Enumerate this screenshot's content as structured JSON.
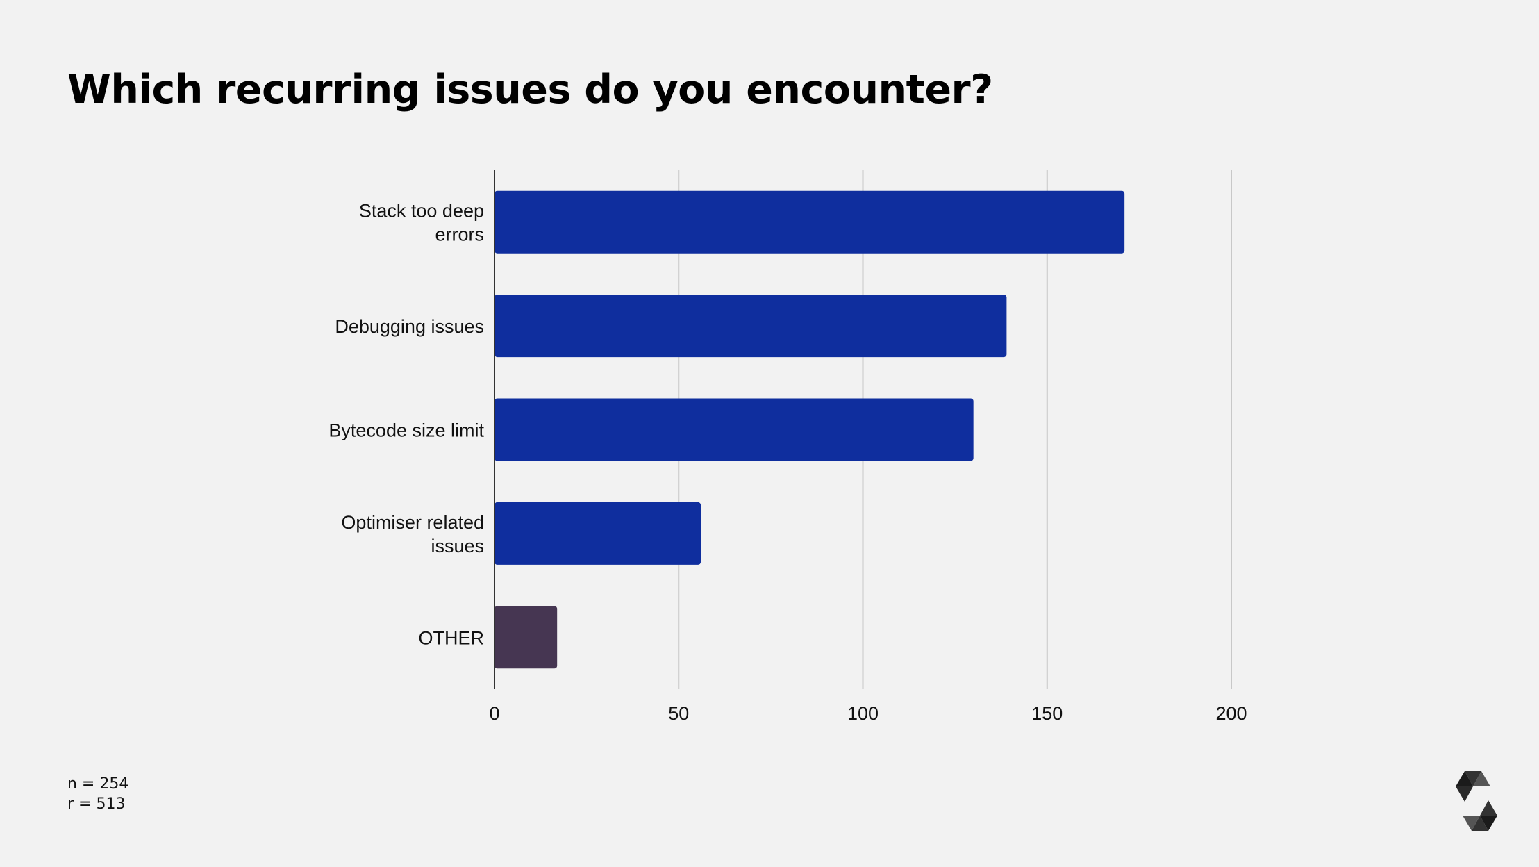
{
  "chart_data": {
    "type": "bar",
    "orientation": "horizontal",
    "title": "Which recurring issues do you encounter?",
    "categories": [
      [
        "Stack too deep",
        "errors"
      ],
      [
        "Debugging issues"
      ],
      [
        "Bytecode size limit"
      ],
      [
        "Optimiser related",
        "issues"
      ],
      [
        "OTHER"
      ]
    ],
    "values": [
      171,
      139,
      130,
      56,
      17
    ],
    "colors": [
      "#0f2e9e",
      "#0f2e9e",
      "#0f2e9e",
      "#0f2e9e",
      "#463652"
    ],
    "xlim": [
      0,
      200
    ],
    "xticks": [
      "0",
      "50",
      "100",
      "150",
      "200"
    ],
    "xtick_values": [
      0,
      50,
      100,
      150,
      200
    ],
    "grid": true,
    "xlabel": "",
    "ylabel": ""
  },
  "notes": {
    "n": "n = 254",
    "r": "r = 513"
  },
  "logo": "Solidity"
}
